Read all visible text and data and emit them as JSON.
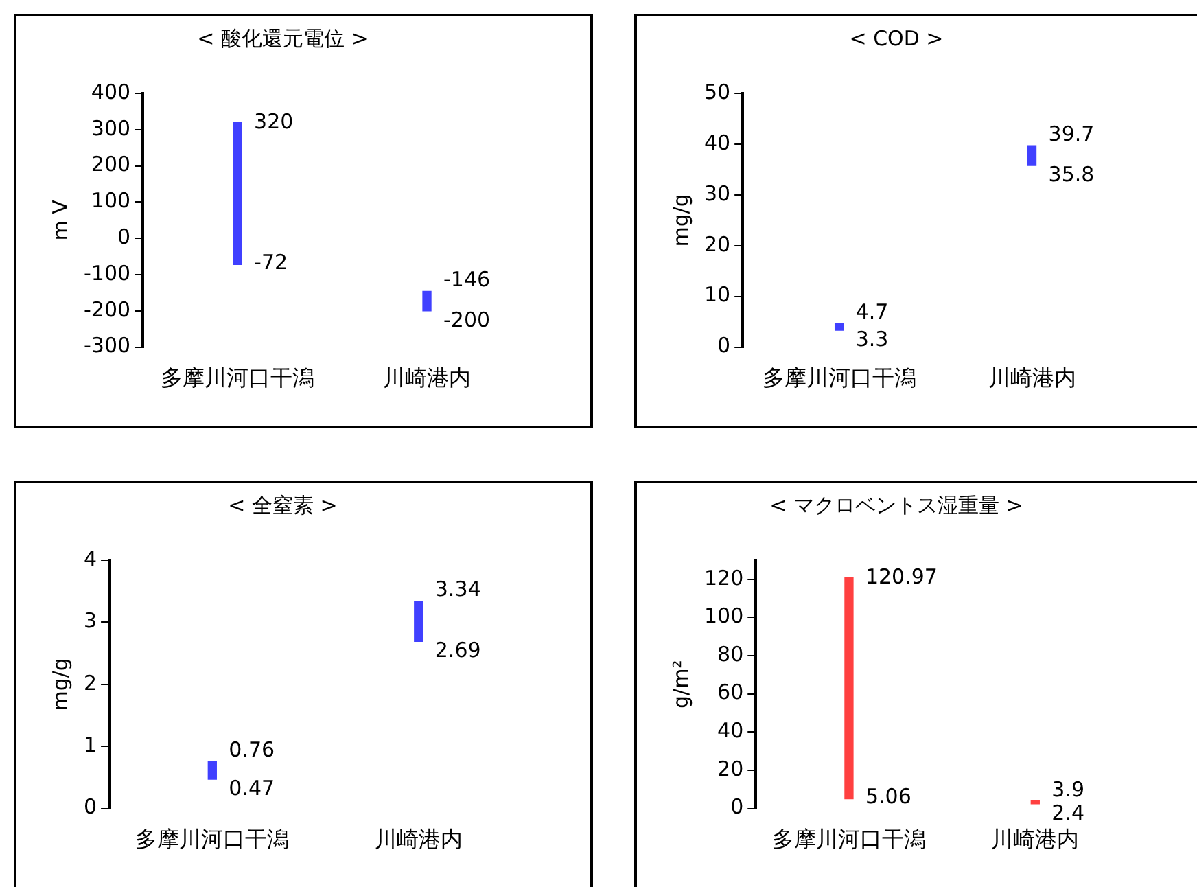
{
  "chart_data": [
    {
      "type": "bar",
      "title": "< 酸化還元電位 >",
      "ylabel": "m V",
      "categories": [
        "多摩川河口干潟",
        "川崎港内"
      ],
      "base": [
        -72,
        -200
      ],
      "values": [
        392,
        54
      ],
      "color": "#4040ff",
      "ylim": [
        -300,
        400
      ],
      "yticks": [
        -300,
        -200,
        -100,
        0,
        100,
        200,
        300,
        400
      ],
      "annotations": [
        {
          "text": "320",
          "x": "多摩川河口干潟",
          "y": 320
        },
        {
          "text": "-72",
          "x": "多摩川河口干潟",
          "y": -72
        },
        {
          "text": "-146",
          "x": "川崎港内",
          "y": -146
        },
        {
          "text": "-200",
          "x": "川崎港内",
          "y": -200
        }
      ]
    },
    {
      "type": "bar",
      "title": "< COD >",
      "ylabel": "mg/g",
      "categories": [
        "多摩川河口干潟",
        "川崎港内"
      ],
      "base": [
        3.3,
        35.8
      ],
      "values": [
        1.4,
        3.9
      ],
      "color": "#4040ff",
      "ylim": [
        0,
        50
      ],
      "yticks": [
        0,
        10,
        20,
        30,
        40,
        50
      ],
      "annotations": [
        {
          "text": "4.7",
          "x": "多摩川河口干潟",
          "y": 4.7
        },
        {
          "text": "3.3",
          "x": "多摩川河口干潟",
          "y": 3.3
        },
        {
          "text": "39.7",
          "x": "川崎港内",
          "y": 39.7
        },
        {
          "text": "35.8",
          "x": "川崎港内",
          "y": 35.8
        }
      ]
    },
    {
      "type": "bar",
      "title": "< 全窒素 >",
      "ylabel": "mg/g",
      "categories": [
        "多摩川河口干潟",
        "川崎港内"
      ],
      "base": [
        0.47,
        2.69
      ],
      "values": [
        0.29,
        0.65
      ],
      "color": "#4040ff",
      "ylim": [
        0,
        4
      ],
      "yticks": [
        0,
        1,
        2,
        3,
        4
      ],
      "annotations": [
        {
          "text": "0.76",
          "x": "多摩川河口干潟",
          "y": 0.76
        },
        {
          "text": "0.47",
          "x": "多摩川河口干潟",
          "y": 0.47
        },
        {
          "text": "3.34",
          "x": "川崎港内",
          "y": 3.34
        },
        {
          "text": "2.69",
          "x": "川崎港内",
          "y": 2.69
        }
      ]
    },
    {
      "type": "bar",
      "title": "< マクロベントス湿重量 >",
      "ylabel": "g/m²",
      "categories": [
        "多摩川河口干潟",
        "川崎港内"
      ],
      "base": [
        5.06,
        2.4
      ],
      "values": [
        115.91,
        1.5
      ],
      "color": "#ff4040",
      "ylim": [
        0,
        130
      ],
      "yticks": [
        0,
        20,
        40,
        60,
        80,
        100,
        120
      ],
      "annotations": [
        {
          "text": "120.97",
          "x": "多摩川河口干潟",
          "y": 120.97
        },
        {
          "text": "5.06",
          "x": "多摩川河口干潟",
          "y": 5.06
        },
        {
          "text": "3.9",
          "x": "川崎港内",
          "y": 3.9
        },
        {
          "text": "2.4",
          "x": "川崎港内",
          "y": 2.4
        }
      ]
    }
  ]
}
